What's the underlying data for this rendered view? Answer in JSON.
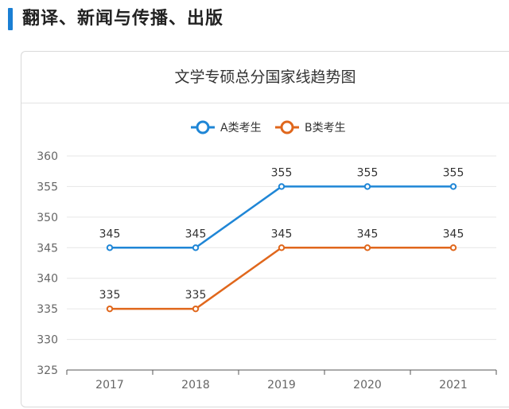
{
  "page": {
    "section_title": "翻译、新闻与传播、出版"
  },
  "colors": {
    "accent": "#1a7fd4",
    "series_a": "#1f86d6",
    "series_b": "#e0671c",
    "grid": "#e6e6e6",
    "axis_text": "#666666"
  },
  "chart_data": {
    "type": "line",
    "title": "文学专硕总分国家线趋势图",
    "xlabel": "",
    "ylabel": "",
    "categories": [
      "2017",
      "2018",
      "2019",
      "2020",
      "2021"
    ],
    "series": [
      {
        "name": "A类考生",
        "values": [
          345,
          345,
          355,
          355,
          355
        ]
      },
      {
        "name": "B类考生",
        "values": [
          335,
          335,
          345,
          345,
          345
        ]
      }
    ],
    "ylim": [
      325,
      360
    ],
    "yticks": [
      325,
      330,
      335,
      340,
      345,
      350,
      355,
      360
    ],
    "grid": true,
    "legend": "top-center",
    "data_labels": true
  }
}
